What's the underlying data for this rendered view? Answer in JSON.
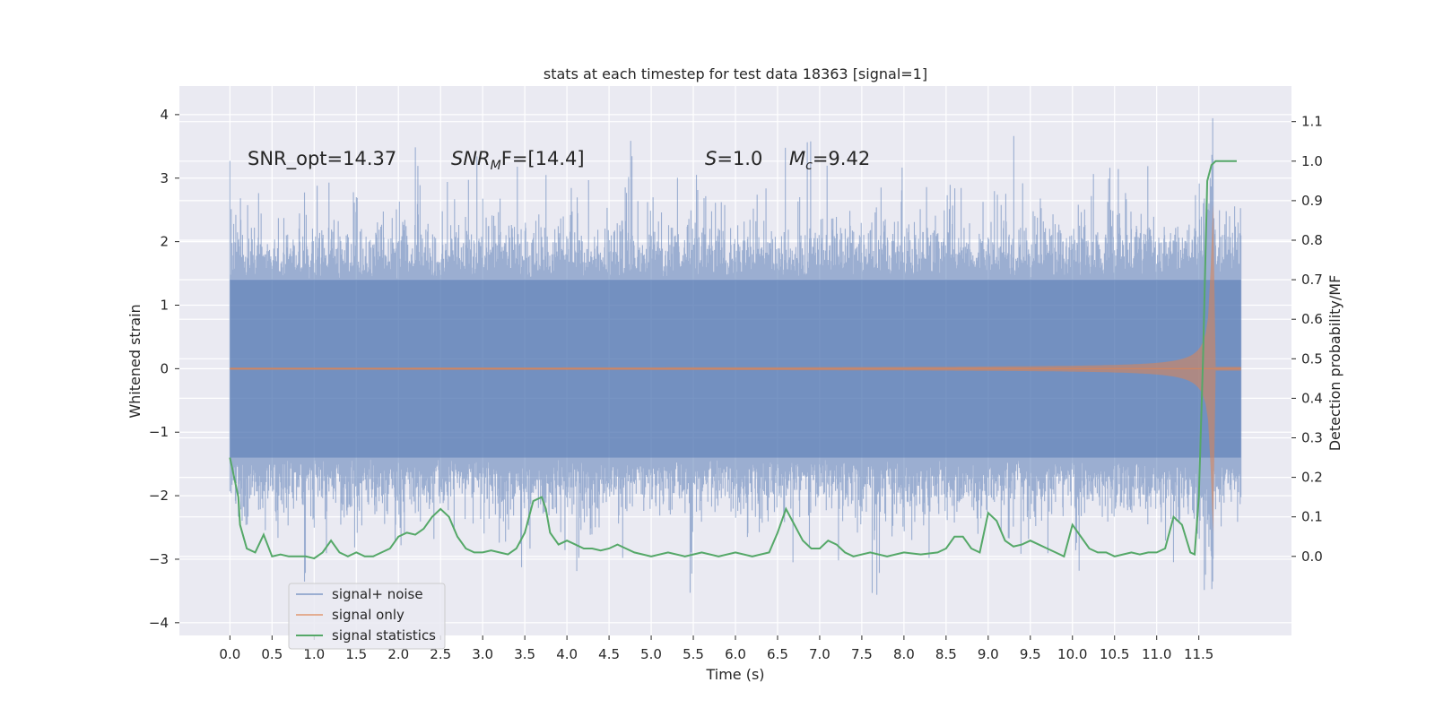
{
  "chart_data": {
    "type": "line",
    "title": "stats at each timestep for test data 18363 [signal=1]",
    "xlabel": "Time (s)",
    "ylabel": "Whitened strain",
    "ylabel_right": "Detection probability/MF",
    "xlim": [
      -0.6,
      12.6
    ],
    "ylim": [
      -4.2,
      4.45
    ],
    "ylim_right": [
      -0.2,
      1.19
    ],
    "x_ticks": [
      0.0,
      0.5,
      1.0,
      1.5,
      2.0,
      2.5,
      3.0,
      3.5,
      4.0,
      4.5,
      5.0,
      5.5,
      6.0,
      6.5,
      7.0,
      7.5,
      8.0,
      8.5,
      9.0,
      9.5,
      10.0,
      10.5,
      11.0,
      11.5
    ],
    "x_tick_labels": [
      "0.0",
      "0.5",
      "1.0",
      "1.5",
      "2.0",
      "2.5",
      "3.0",
      "3.5",
      "4.0",
      "4.5",
      "5.0",
      "5.5",
      "6.0",
      "6.5",
      "7.0",
      "7.5",
      "8.0",
      "8.5",
      "9.0",
      "9.5",
      "10.0",
      "10.5",
      "11.0",
      "11.5"
    ],
    "y_ticks": [
      -4,
      -3,
      -2,
      -1,
      0,
      1,
      2,
      3,
      4
    ],
    "y_tick_labels": [
      "−4",
      "−3",
      "−2",
      "−1",
      "0",
      "1",
      "2",
      "3",
      "4"
    ],
    "y_ticks_right": [
      0.0,
      0.1,
      0.2,
      0.3,
      0.4,
      0.5,
      0.6,
      0.7,
      0.8,
      0.9,
      1.0,
      1.1
    ],
    "y_tick_labels_right": [
      "0.0",
      "0.1",
      "0.2",
      "0.3",
      "0.4",
      "0.5",
      "0.6",
      "0.7",
      "0.8",
      "0.9",
      "1.0",
      "1.1"
    ],
    "grid": true,
    "legend_position": "lower-left",
    "series": [
      {
        "name": "signal+ noise",
        "color": "#4c72b0",
        "axis": "left",
        "t_range": [
          0.0,
          12.0
        ],
        "typical_envelope": [
          -1.4,
          1.4
        ],
        "extreme_range": [
          -3.8,
          4.1
        ]
      },
      {
        "name": "signal only",
        "color": "#dd8452",
        "axis": "left",
        "t_range": [
          0.0,
          12.0
        ],
        "chirp_peak_time": 11.65,
        "peak_amplitude": 2.6,
        "amplitude_at_10s": 0.15,
        "amplitude_at_11s": 0.4
      },
      {
        "name": "signal statistics",
        "color": "#55a868",
        "axis": "right",
        "x": [
          0.0,
          0.1,
          0.12,
          0.2,
          0.3,
          0.4,
          0.5,
          0.6,
          0.7,
          0.8,
          0.9,
          1.0,
          1.1,
          1.2,
          1.3,
          1.4,
          1.5,
          1.6,
          1.7,
          1.8,
          1.9,
          2.0,
          2.1,
          2.2,
          2.3,
          2.4,
          2.5,
          2.6,
          2.7,
          2.8,
          2.9,
          3.0,
          3.1,
          3.2,
          3.3,
          3.4,
          3.5,
          3.6,
          3.7,
          3.75,
          3.8,
          3.9,
          4.0,
          4.1,
          4.2,
          4.3,
          4.4,
          4.5,
          4.6,
          4.7,
          4.8,
          4.9,
          5.0,
          5.2,
          5.4,
          5.6,
          5.8,
          6.0,
          6.2,
          6.4,
          6.5,
          6.6,
          6.7,
          6.8,
          6.9,
          7.0,
          7.1,
          7.2,
          7.3,
          7.4,
          7.6,
          7.8,
          8.0,
          8.2,
          8.4,
          8.5,
          8.6,
          8.7,
          8.8,
          8.9,
          9.0,
          9.1,
          9.2,
          9.3,
          9.4,
          9.5,
          9.6,
          9.7,
          9.8,
          9.9,
          10.0,
          10.1,
          10.2,
          10.3,
          10.4,
          10.5,
          10.6,
          10.7,
          10.8,
          10.9,
          11.0,
          11.1,
          11.2,
          11.3,
          11.4,
          11.45,
          11.5,
          11.55,
          11.6,
          11.65,
          11.7,
          11.8,
          11.9,
          11.95
        ],
        "y": [
          0.25,
          0.15,
          0.08,
          0.02,
          0.01,
          0.055,
          0.0,
          0.005,
          0.0,
          0.0,
          0.0,
          -0.005,
          0.01,
          0.04,
          0.01,
          0.0,
          0.01,
          0.0,
          0.0,
          0.01,
          0.02,
          0.05,
          0.06,
          0.055,
          0.07,
          0.1,
          0.12,
          0.1,
          0.05,
          0.02,
          0.01,
          0.01,
          0.015,
          0.01,
          0.005,
          0.02,
          0.06,
          0.14,
          0.15,
          0.12,
          0.06,
          0.03,
          0.04,
          0.03,
          0.02,
          0.02,
          0.015,
          0.02,
          0.03,
          0.02,
          0.01,
          0.005,
          0.0,
          0.01,
          0.0,
          0.01,
          0.0,
          0.01,
          0.0,
          0.01,
          0.06,
          0.12,
          0.08,
          0.04,
          0.02,
          0.02,
          0.04,
          0.03,
          0.01,
          0.0,
          0.01,
          0.0,
          0.01,
          0.005,
          0.01,
          0.02,
          0.05,
          0.05,
          0.02,
          0.01,
          0.11,
          0.09,
          0.04,
          0.025,
          0.03,
          0.04,
          0.03,
          0.02,
          0.01,
          0.0,
          0.08,
          0.05,
          0.02,
          0.01,
          0.01,
          0.0,
          0.005,
          0.01,
          0.005,
          0.01,
          0.01,
          0.02,
          0.1,
          0.08,
          0.01,
          0.005,
          0.15,
          0.5,
          0.95,
          0.99,
          1.0,
          1.0,
          1.0,
          1.0
        ]
      }
    ],
    "annotations": [
      {
        "id": "snr-opt",
        "t": 0.2,
        "y": 3.3,
        "text": "SNR_opt=14.37"
      },
      {
        "id": "snr-mf",
        "t": 2.6,
        "y": 3.3,
        "text_lead": "SNR",
        "text_sub": "M",
        "text_tail": "F=[14.4]"
      },
      {
        "id": "s",
        "t": 5.6,
        "y": 3.3,
        "text_lead": "S",
        "text_tail": "=1.0"
      },
      {
        "id": "mc",
        "t": 6.6,
        "y": 3.3,
        "text_lead": "M",
        "text_sub": "c",
        "text_tail": "=9.42"
      }
    ]
  }
}
